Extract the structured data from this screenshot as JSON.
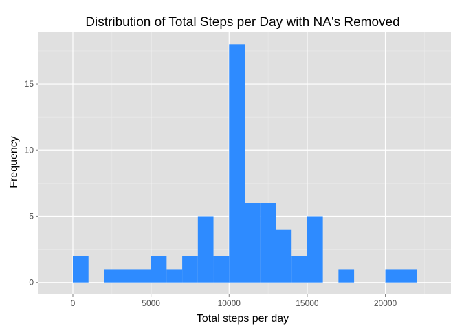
{
  "chart_data": {
    "type": "bar",
    "title": "Distribution of Total Steps per Day with NA's Removed",
    "xlabel": "Total steps per day",
    "ylabel": "Frequency",
    "bin_width": 1000,
    "x": [
      0,
      1000,
      2000,
      3000,
      4000,
      5000,
      6000,
      7000,
      8000,
      9000,
      10000,
      11000,
      12000,
      13000,
      14000,
      15000,
      16000,
      17000,
      18000,
      19000,
      20000,
      21000
    ],
    "values": [
      2,
      0,
      1,
      1,
      1,
      2,
      1,
      2,
      5,
      2,
      18,
      6,
      6,
      4,
      2,
      5,
      0,
      1,
      0,
      0,
      1,
      1
    ],
    "xlim": [
      -2200,
      24200
    ],
    "ylim": [
      -0.9,
      18.9
    ],
    "x_ticks": [
      0,
      5000,
      10000,
      15000,
      20000
    ],
    "x_tick_labels": [
      "0",
      "5000",
      "10000",
      "15000",
      "20000"
    ],
    "y_ticks": [
      0,
      5,
      10,
      15
    ],
    "y_tick_labels": [
      "0",
      "5",
      "10",
      "15"
    ],
    "grid": true,
    "colors": {
      "bar": "#2E8BFF",
      "panel": "#E0E0E0",
      "grid_major": "#FFFFFF",
      "grid_minor": "#EBEBEB",
      "tick_label": "#4D4D4D",
      "axis_tick": "#7F7F7F"
    }
  }
}
